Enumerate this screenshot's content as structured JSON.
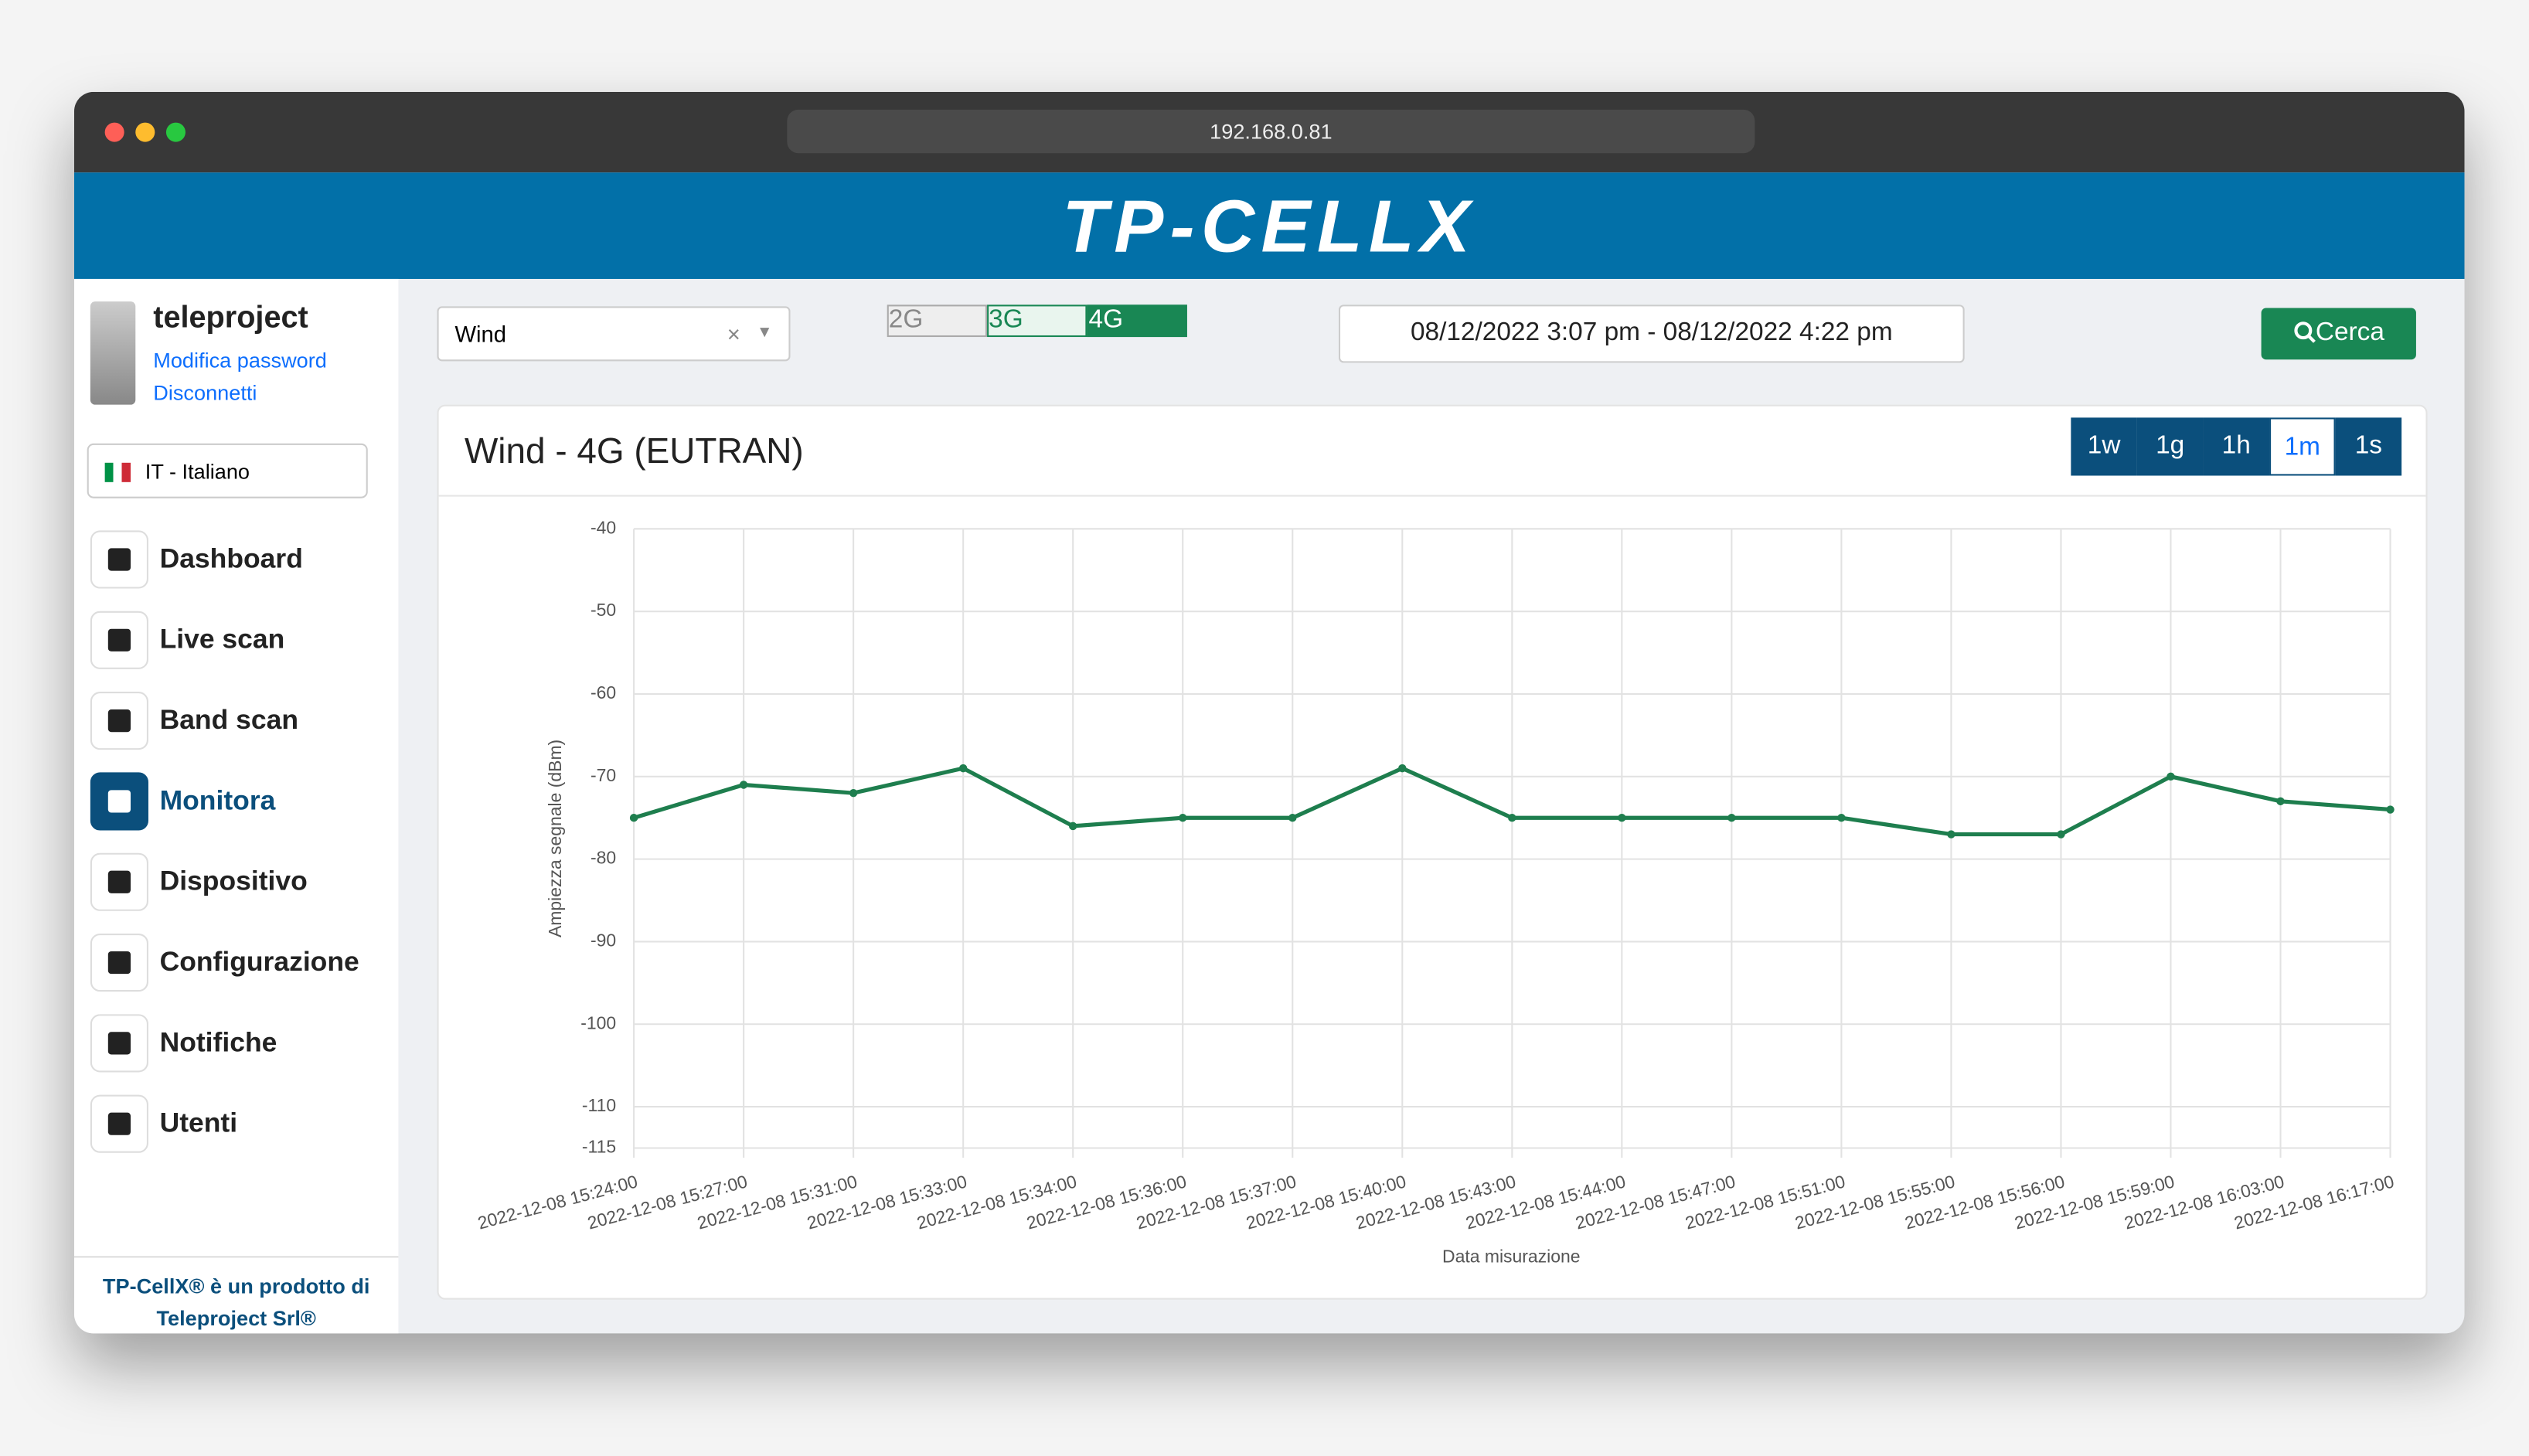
{
  "browser": {
    "url": "192.168.0.81"
  },
  "header": {
    "logo": "TP-CELLX"
  },
  "sidebar": {
    "user": "teleproject",
    "links": [
      "Modifica password",
      "Disconnetti"
    ],
    "language": "IT - Italiano",
    "nav": [
      "Dashboard",
      "Live scan",
      "Band scan",
      "Monitora",
      "Dispositivo",
      "Configurazione",
      "Notifiche",
      "Utenti"
    ],
    "active": "Monitora",
    "footer": [
      "TP-CellX® è un prodotto di",
      "Teleproject Srl®"
    ]
  },
  "toolbar": {
    "operator": "Wind",
    "technologies": [
      "2G",
      "3G",
      "4G"
    ],
    "date_range": "08/12/2022 3:07 pm - 08/12/2022 4:22 pm",
    "search": "Cerca"
  },
  "card": {
    "title": "Wind - 4G (EUTRAN)",
    "ranges": [
      "1w",
      "1g",
      "1h",
      "1m",
      "1s"
    ]
  },
  "chart_data": {
    "type": "line",
    "x_label": "Data misurazione",
    "y_label": "Ampiezza segnale (dBm)",
    "categories": [
      "2022-12-08 15:24:00",
      "2022-12-08 15:27:00",
      "2022-12-08 15:31:00",
      "2022-12-08 15:33:00",
      "2022-12-08 15:34:00",
      "2022-12-08 15:36:00",
      "2022-12-08 15:37:00",
      "2022-12-08 15:40:00",
      "2022-12-08 15:43:00",
      "2022-12-08 15:44:00",
      "2022-12-08 15:47:00",
      "2022-12-08 15:51:00",
      "2022-12-08 15:55:00",
      "2022-12-08 15:56:00",
      "2022-12-08 15:59:00",
      "2022-12-08 16:03:00",
      "2022-12-08 16:17:00"
    ],
    "values": [
      -75,
      -71,
      -72,
      -69,
      -76,
      -75,
      -75,
      -69,
      -75,
      -75,
      -75,
      -75,
      -77,
      -77,
      -70,
      -73,
      -74
    ],
    "color": "#1e7e4e",
    "ylim": [
      -115,
      -40
    ],
    "yticks": [
      -115,
      -110,
      -100,
      -90,
      -80,
      -70,
      -60,
      -50,
      -40
    ],
    "grid": true
  }
}
